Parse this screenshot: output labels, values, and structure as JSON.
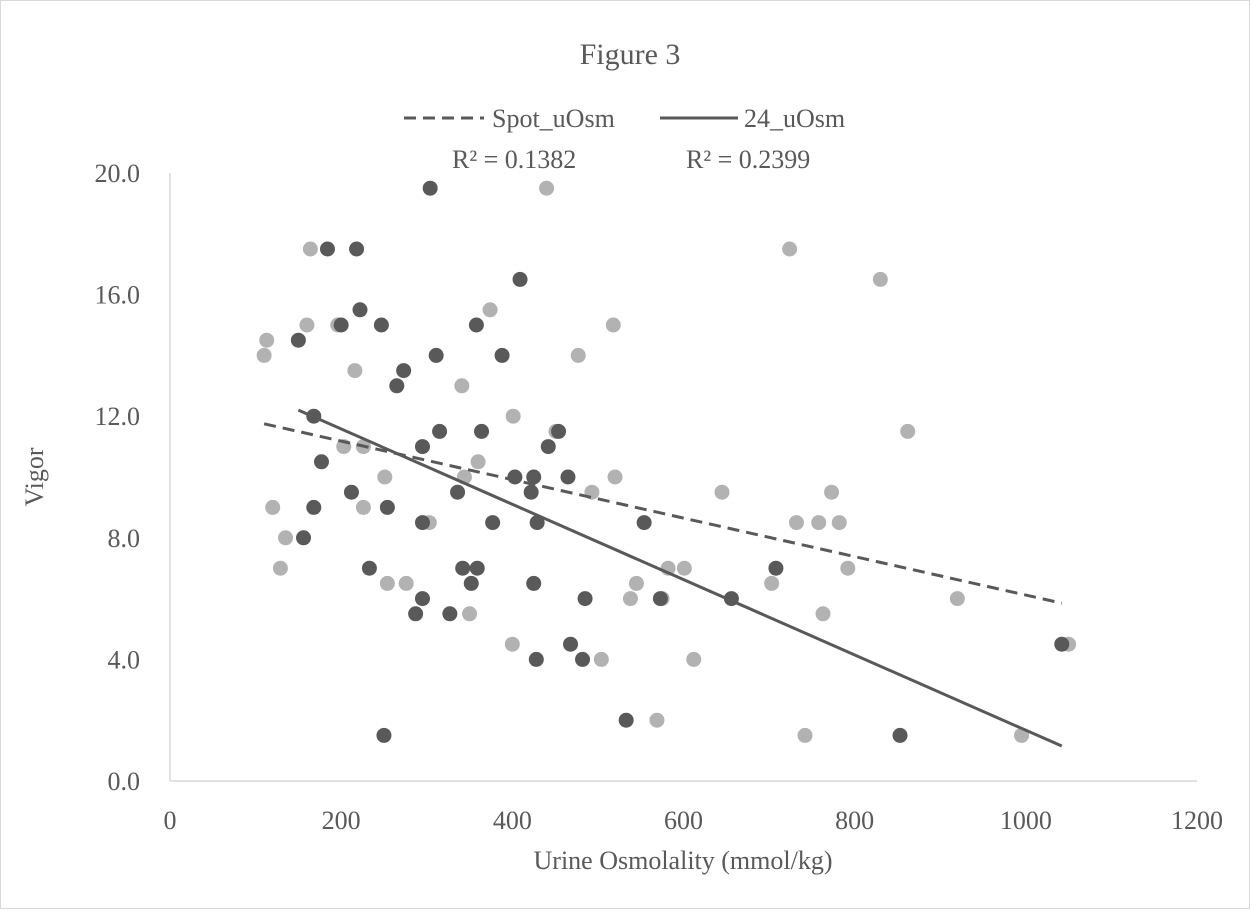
{
  "chart_data": {
    "type": "scatter",
    "title": "Figure 3",
    "xlabel": "Urine Osmolality (mmol/kg)",
    "ylabel": "Vigor",
    "xlim": [
      0,
      1200
    ],
    "ylim": [
      0,
      20
    ],
    "x_ticks": [
      "0",
      "200",
      "400",
      "600",
      "800",
      "1000",
      "1200"
    ],
    "y_ticks": [
      "0.0",
      "4.0",
      "8.0",
      "12.0",
      "16.0",
      "20.0"
    ],
    "x_tick_values": [
      0,
      200,
      400,
      600,
      800,
      1000,
      1200
    ],
    "y_tick_values": [
      0,
      4,
      8,
      12,
      16,
      20
    ],
    "grid": false,
    "legend_position": "top",
    "legend": [
      {
        "label": "Spot_uOsm",
        "line_style": "dashed"
      },
      {
        "label": "24_uOsm",
        "line_style": "solid"
      }
    ],
    "r2_labels": [
      "R² = 0.1382",
      "R² = 0.2399"
    ],
    "colors": {
      "spot_points": "#b2b2b2",
      "day_points": "#595959",
      "spot_line": "#595959",
      "day_line": "#595959",
      "axis": "#d9d9d9",
      "text": "#595959"
    },
    "series": [
      {
        "name": "Spot_uOsm",
        "color": "#b2b2b2",
        "points": [
          [
            110,
            14
          ],
          [
            113,
            14.5
          ],
          [
            120,
            9
          ],
          [
            129,
            7
          ],
          [
            135,
            8
          ],
          [
            160,
            15
          ],
          [
            164,
            17.5
          ],
          [
            196,
            15
          ],
          [
            203,
            11
          ],
          [
            216,
            13.5
          ],
          [
            226,
            11
          ],
          [
            226,
            9
          ],
          [
            251,
            10
          ],
          [
            254,
            6.5
          ],
          [
            276,
            6.5
          ],
          [
            303,
            8.5
          ],
          [
            341,
            13
          ],
          [
            344,
            10
          ],
          [
            350,
            5.5
          ],
          [
            360,
            10.5
          ],
          [
            374,
            15.5
          ],
          [
            400,
            4.5
          ],
          [
            401,
            12
          ],
          [
            440,
            19.5
          ],
          [
            451,
            11.5
          ],
          [
            493,
            9.5
          ],
          [
            504,
            4
          ],
          [
            518,
            15
          ],
          [
            520,
            10
          ],
          [
            538,
            6
          ],
          [
            545,
            6.5
          ],
          [
            569,
            2
          ],
          [
            575,
            6
          ],
          [
            582,
            7
          ],
          [
            601,
            7
          ],
          [
            612,
            4
          ],
          [
            645,
            9.5
          ],
          [
            703,
            6.5
          ],
          [
            724,
            17.5
          ],
          [
            732,
            8.5
          ],
          [
            742,
            1.5
          ],
          [
            758,
            8.5
          ],
          [
            763,
            5.5
          ],
          [
            773,
            9.5
          ],
          [
            782,
            8.5
          ],
          [
            792,
            7
          ],
          [
            830,
            16.5
          ],
          [
            862,
            11.5
          ],
          [
            920,
            6
          ],
          [
            995,
            1.5
          ],
          [
            1050,
            4.5
          ],
          [
            477,
            14
          ]
        ],
        "trendline": {
          "style": "dashed",
          "x": [
            110,
            1042
          ],
          "y": [
            11.75,
            5.85
          ]
        }
      },
      {
        "name": "24_uOsm",
        "color": "#595959",
        "points": [
          [
            150,
            14.5
          ],
          [
            156,
            8
          ],
          [
            168,
            12
          ],
          [
            168,
            9
          ],
          [
            177,
            10.5
          ],
          [
            184,
            17.5
          ],
          [
            200,
            15
          ],
          [
            212,
            9.5
          ],
          [
            218,
            17.5
          ],
          [
            222,
            15.5
          ],
          [
            233,
            7
          ],
          [
            247,
            15
          ],
          [
            250,
            1.5
          ],
          [
            254,
            9
          ],
          [
            265,
            13
          ],
          [
            273,
            13.5
          ],
          [
            287,
            5.5
          ],
          [
            295,
            8.5
          ],
          [
            295,
            11
          ],
          [
            295,
            6
          ],
          [
            304,
            19.5
          ],
          [
            311,
            14
          ],
          [
            315,
            11.5
          ],
          [
            327,
            5.5
          ],
          [
            336,
            9.5
          ],
          [
            342,
            7
          ],
          [
            352,
            6.5
          ],
          [
            358,
            15
          ],
          [
            359,
            7
          ],
          [
            364,
            11.5
          ],
          [
            377,
            8.5
          ],
          [
            388,
            14
          ],
          [
            403,
            10
          ],
          [
            409,
            16.5
          ],
          [
            422,
            9.5
          ],
          [
            425,
            10
          ],
          [
            425,
            6.5
          ],
          [
            428,
            4
          ],
          [
            429,
            8.5
          ],
          [
            442,
            11
          ],
          [
            454,
            11.5
          ],
          [
            465,
            10
          ],
          [
            468,
            4.5
          ],
          [
            482,
            4
          ],
          [
            485,
            6
          ],
          [
            533,
            2
          ],
          [
            554,
            8.5
          ],
          [
            573,
            6
          ],
          [
            656,
            6
          ],
          [
            708,
            7
          ],
          [
            853,
            1.5
          ],
          [
            1042,
            4.5
          ]
        ],
        "trendline": {
          "style": "solid",
          "x": [
            150,
            1042
          ],
          "y": [
            12.2,
            1.15
          ]
        }
      }
    ]
  }
}
